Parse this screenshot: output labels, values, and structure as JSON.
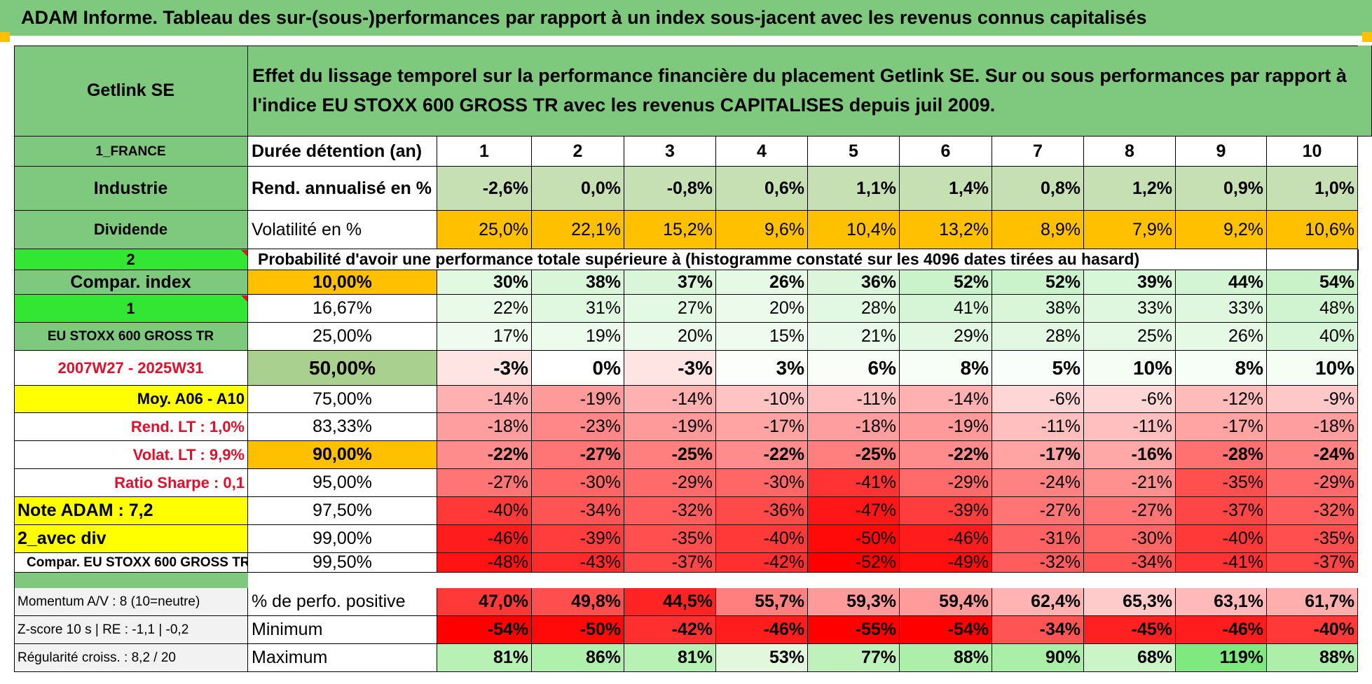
{
  "title": "ADAM Informe. Tableau des sur-(sous-)performances par rapport à un index sous-jacent avec les revenus connus capitalisés",
  "sidebar": {
    "company": "Getlink SE",
    "country": "1_FRANCE",
    "sector": "Industrie",
    "dividend_label": "Dividende",
    "value_2": "2",
    "compar_index": "Compar. index",
    "value_1": "1",
    "index_name": "EU STOXX 600 GROSS TR",
    "period": "2007W27 - 2025W31",
    "moy": "Moy. A06 - A10",
    "rend_lt": "Rend. LT :    1,0%",
    "volat_lt": "Volat. LT :    9,9%",
    "sharpe": "Ratio Sharpe :    0,1",
    "note": "Note ADAM : 7,2",
    "avec_div": "2_avec div",
    "compar_eu": "Compar. EU STOXX 600 GROSS TR",
    "momentum": "Momentum A/V : 8 (10=neutre)",
    "zscore": "Z-score 10 s | RE : -1,1 | -0,2",
    "regularite": "Régularité croiss. : 8,2 / 20"
  },
  "description": "Effet du lissage temporel sur la performance financière du placement Getlink SE. Sur ou sous performances par rapport à l'indice EU STOXX 600 GROSS TR avec les revenus CAPITALISES depuis juil 2009.",
  "labels": {
    "duration": "Durée détention (an)",
    "rend": "Rend. annualisé en %",
    "volat": "Volatilité en %",
    "probability": "Probabilité d'avoir une performance totale supérieure à (histogramme constaté sur les 4096 dates tirées au hasard)",
    "positive": "% de perfo. positive",
    "minimum": "Minimum",
    "maximum": "Maximum"
  },
  "years": [
    "1",
    "2",
    "3",
    "4",
    "5",
    "6",
    "7",
    "8",
    "9",
    "10"
  ],
  "rend": [
    "-2,6%",
    "0,0%",
    "-0,8%",
    "0,6%",
    "1,1%",
    "1,4%",
    "0,8%",
    "1,2%",
    "0,9%",
    "1,0%"
  ],
  "volat": [
    "25,0%",
    "22,1%",
    "15,2%",
    "9,6%",
    "10,4%",
    "13,2%",
    "8,9%",
    "7,9%",
    "9,2%",
    "10,6%"
  ],
  "percentile_rows": [
    {
      "pct": "10,00%",
      "values": [
        "30%",
        "38%",
        "37%",
        "26%",
        "36%",
        "52%",
        "52%",
        "39%",
        "44%",
        "54%"
      ]
    },
    {
      "pct": "16,67%",
      "values": [
        "22%",
        "31%",
        "27%",
        "20%",
        "28%",
        "41%",
        "38%",
        "33%",
        "33%",
        "48%"
      ]
    },
    {
      "pct": "25,00%",
      "values": [
        "17%",
        "19%",
        "20%",
        "15%",
        "21%",
        "29%",
        "28%",
        "25%",
        "26%",
        "40%"
      ]
    },
    {
      "pct": "50,00%",
      "values": [
        "-3%",
        "0%",
        "-3%",
        "3%",
        "6%",
        "8%",
        "5%",
        "10%",
        "8%",
        "10%"
      ]
    },
    {
      "pct": "75,00%",
      "values": [
        "-14%",
        "-19%",
        "-14%",
        "-10%",
        "-11%",
        "-14%",
        "-6%",
        "-6%",
        "-12%",
        "-9%"
      ]
    },
    {
      "pct": "83,33%",
      "values": [
        "-18%",
        "-23%",
        "-19%",
        "-17%",
        "-18%",
        "-19%",
        "-11%",
        "-11%",
        "-17%",
        "-18%"
      ]
    },
    {
      "pct": "90,00%",
      "values": [
        "-22%",
        "-27%",
        "-25%",
        "-22%",
        "-25%",
        "-22%",
        "-17%",
        "-16%",
        "-28%",
        "-24%"
      ]
    },
    {
      "pct": "95,00%",
      "values": [
        "-27%",
        "-30%",
        "-29%",
        "-30%",
        "-41%",
        "-29%",
        "-24%",
        "-21%",
        "-35%",
        "-29%"
      ]
    },
    {
      "pct": "97,50%",
      "values": [
        "-40%",
        "-34%",
        "-32%",
        "-36%",
        "-47%",
        "-39%",
        "-27%",
        "-27%",
        "-37%",
        "-32%"
      ]
    },
    {
      "pct": "99,00%",
      "values": [
        "-46%",
        "-39%",
        "-35%",
        "-40%",
        "-50%",
        "-46%",
        "-31%",
        "-30%",
        "-40%",
        "-35%"
      ]
    },
    {
      "pct": "99,50%",
      "values": [
        "-48%",
        "-43%",
        "-37%",
        "-42%",
        "-52%",
        "-49%",
        "-32%",
        "-34%",
        "-41%",
        "-37%"
      ]
    }
  ],
  "positive": [
    "47,0%",
    "49,8%",
    "44,5%",
    "55,7%",
    "59,3%",
    "59,4%",
    "62,4%",
    "65,3%",
    "63,1%",
    "61,7%"
  ],
  "minimum": [
    "-54%",
    "-50%",
    "-42%",
    "-46%",
    "-55%",
    "-54%",
    "-34%",
    "-45%",
    "-46%",
    "-40%"
  ],
  "maximum": [
    "81%",
    "86%",
    "81%",
    "53%",
    "77%",
    "88%",
    "90%",
    "68%",
    "119%",
    "88%"
  ],
  "colors": {
    "header_green": "#7fc97f",
    "bright_green": "#33e633",
    "yellow": "#ffff00",
    "orange": "#ffc000",
    "light_green": "#c6e0b4",
    "median_green": "#a9d08e",
    "red_text": "#e0102c"
  }
}
